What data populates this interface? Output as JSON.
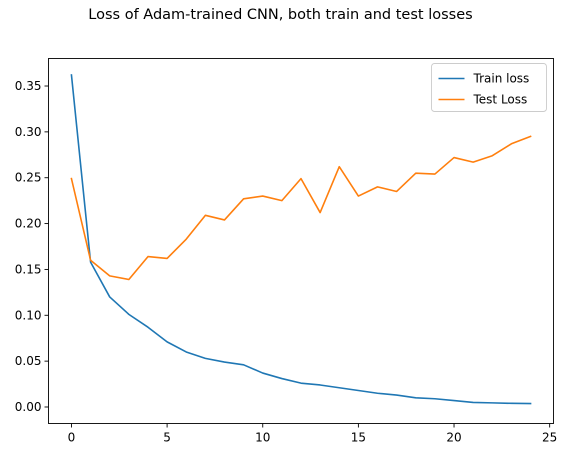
{
  "chart_data": {
    "type": "line",
    "title": "Loss of Adam-trained CNN, both train and test losses",
    "xlabel": "",
    "ylabel": "",
    "xlim": [
      -1.2,
      25.2
    ],
    "ylim": [
      -0.018,
      0.38
    ],
    "xticks": [
      0,
      5,
      10,
      15,
      20,
      25
    ],
    "xtick_labels": [
      "0",
      "5",
      "10",
      "15",
      "20",
      "25"
    ],
    "yticks": [
      0.0,
      0.05,
      0.1,
      0.15,
      0.2,
      0.25,
      0.3,
      0.35
    ],
    "ytick_labels": [
      "0.00",
      "0.05",
      "0.10",
      "0.15",
      "0.20",
      "0.25",
      "0.30",
      "0.35"
    ],
    "grid": false,
    "legend_position": "top-right",
    "x": [
      0,
      1,
      2,
      3,
      4,
      5,
      6,
      7,
      8,
      9,
      10,
      11,
      12,
      13,
      14,
      15,
      16,
      17,
      18,
      19,
      20,
      21,
      22,
      23,
      24
    ],
    "series": [
      {
        "name": "Train loss",
        "color": "#1f77b4",
        "values": [
          0.362,
          0.158,
          0.12,
          0.101,
          0.087,
          0.071,
          0.06,
          0.053,
          0.049,
          0.046,
          0.037,
          0.031,
          0.026,
          0.024,
          0.021,
          0.018,
          0.015,
          0.013,
          0.01,
          0.009,
          0.007,
          0.005,
          0.0045,
          0.004,
          0.0038
        ]
      },
      {
        "name": "Test Loss",
        "color": "#ff7f0e",
        "values": [
          0.249,
          0.16,
          0.143,
          0.139,
          0.164,
          0.162,
          0.183,
          0.209,
          0.204,
          0.227,
          0.23,
          0.225,
          0.249,
          0.212,
          0.262,
          0.23,
          0.24,
          0.235,
          0.255,
          0.254,
          0.272,
          0.267,
          0.274,
          0.287,
          0.295
        ]
      }
    ]
  }
}
